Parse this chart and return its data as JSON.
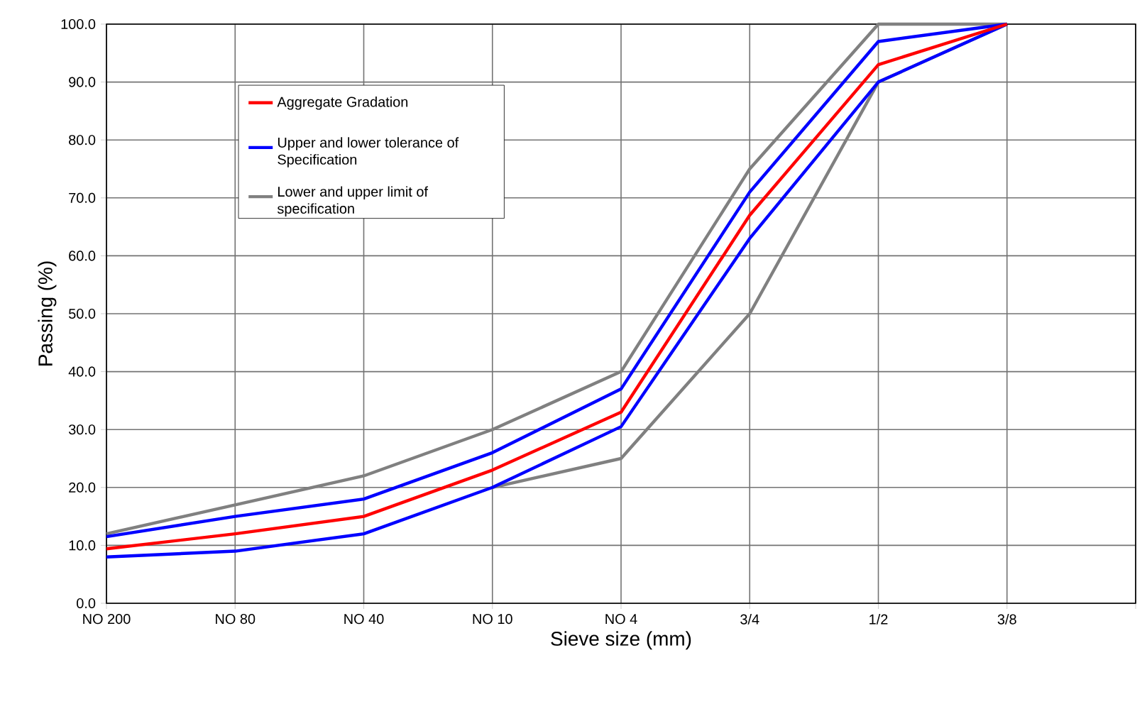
{
  "chart_data": {
    "type": "line",
    "xlabel": "Sieve size (mm)",
    "ylabel": "Passing (%)",
    "categories": [
      "NO 200",
      "NO 80",
      "NO 40",
      "NO 10",
      "NO 4",
      "3/4",
      "1/2",
      "3/8",
      null
    ],
    "series": [
      {
        "name": "Lower and upper limit of specification",
        "color": "#808080",
        "values": [
          12,
          17,
          22,
          30,
          40,
          75,
          100,
          100,
          null
        ]
      },
      {
        "color": "#808080",
        "values": [
          null,
          null,
          null,
          20,
          25,
          50,
          90,
          100,
          null
        ]
      },
      {
        "name": "Upper and lower tolerance of Specification",
        "color": "#0000ff",
        "values": [
          11.5,
          15,
          18,
          26,
          37,
          71,
          97,
          100,
          null
        ]
      },
      {
        "color": "#0000ff",
        "values": [
          8,
          9,
          12,
          20,
          30.5,
          63,
          90,
          100,
          null
        ]
      },
      {
        "name": "Aggregate Gradation",
        "color": "#ff0000",
        "values": [
          9.4,
          12,
          15,
          23,
          33,
          67,
          93,
          100,
          null
        ]
      }
    ],
    "ylim": [
      0,
      100
    ],
    "yticks": [
      {
        "value": 0,
        "label": "0.0"
      },
      {
        "value": 10,
        "label": "10.0"
      },
      {
        "value": 20,
        "label": "20.0"
      },
      {
        "value": 30,
        "label": "30.0"
      },
      {
        "value": 40,
        "label": "40.0"
      },
      {
        "value": 50,
        "label": "50.0"
      },
      {
        "value": 60,
        "label": "60.0"
      },
      {
        "value": 70,
        "label": "70.0"
      },
      {
        "value": 80,
        "label": "80.0"
      },
      {
        "value": 90,
        "label": "90.0"
      },
      {
        "value": 100,
        "label": "100.0"
      }
    ],
    "grid": true,
    "legend": "top left"
  }
}
